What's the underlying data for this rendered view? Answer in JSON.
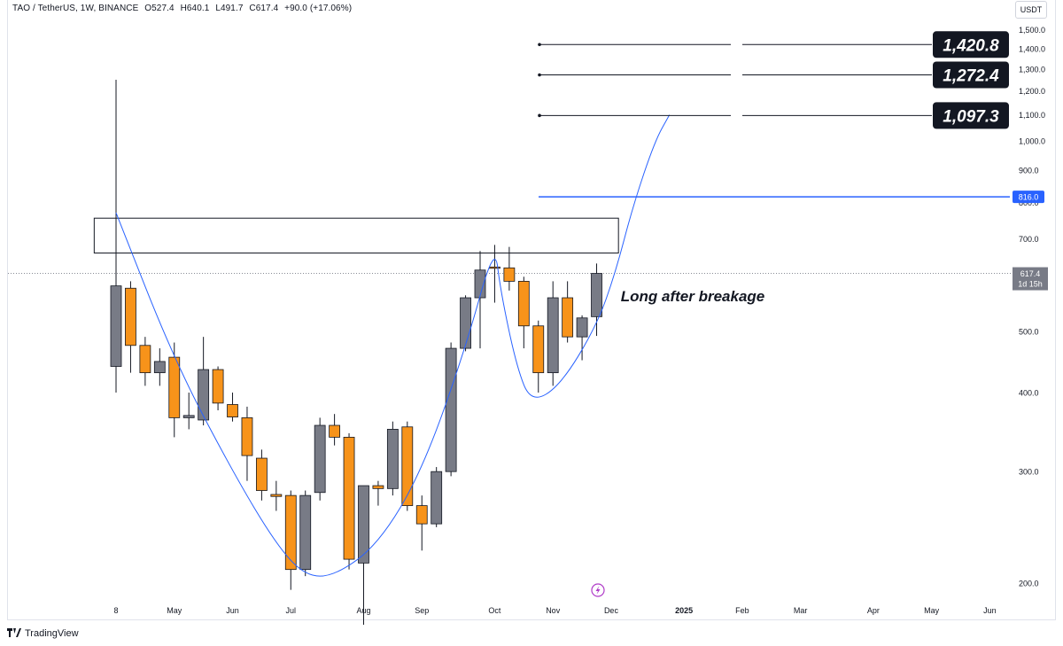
{
  "header": {
    "symbol": "TAO / TetherUS, 1W, BINANCE",
    "open": "O527.4",
    "high": "H640.1",
    "low": "L491.7",
    "close": "C617.4",
    "change": "+90.0 (+17.06%)",
    "currency": "USDT"
  },
  "footer": {
    "brand": "TradingView"
  },
  "annotation_text": "Long after breakage",
  "colors": {
    "up": "#787b86",
    "down": "#f7931a",
    "accent": "#2962ff",
    "target_bg": "#131722"
  },
  "chart_data": {
    "type": "candlestick",
    "y_scale": "log",
    "ylim": [
      180,
      1550
    ],
    "y_ticks": [
      {
        "value": 1500,
        "label": "1,500.0"
      },
      {
        "value": 1400,
        "label": "1,400.0"
      },
      {
        "value": 1300,
        "label": "1,300.0"
      },
      {
        "value": 1200,
        "label": "1,200.0"
      },
      {
        "value": 1100,
        "label": "1,100.0"
      },
      {
        "value": 1000,
        "label": "1,000.0"
      },
      {
        "value": 900,
        "label": "900.0"
      },
      {
        "value": 800,
        "label": "800.0"
      },
      {
        "value": 700,
        "label": "700.0"
      },
      {
        "value": 500,
        "label": "500.0"
      },
      {
        "value": 400,
        "label": "400.0"
      },
      {
        "value": 300,
        "label": "300.0"
      },
      {
        "value": 200,
        "label": "200.0"
      }
    ],
    "x_ticks": [
      {
        "index": 0,
        "label": "8"
      },
      {
        "index": 4,
        "label": "May"
      },
      {
        "index": 8,
        "label": "Jun"
      },
      {
        "index": 12,
        "label": "Jul"
      },
      {
        "index": 17,
        "label": "Aug"
      },
      {
        "index": 21,
        "label": "Sep"
      },
      {
        "index": 26,
        "label": "Oct"
      },
      {
        "index": 30,
        "label": "Nov"
      },
      {
        "index": 34,
        "label": "Dec"
      },
      {
        "index": 39,
        "label": "2025",
        "bold": true
      },
      {
        "index": 43,
        "label": "Feb"
      },
      {
        "index": 47,
        "label": "Mar"
      },
      {
        "index": 52,
        "label": "Apr"
      },
      {
        "index": 56,
        "label": "May"
      },
      {
        "index": 60,
        "label": "Jun"
      }
    ],
    "candles": [
      {
        "o": 440,
        "h": 1250,
        "l": 400,
        "c": 590
      },
      {
        "o": 585,
        "h": 600,
        "l": 430,
        "c": 475
      },
      {
        "o": 475,
        "h": 490,
        "l": 410,
        "c": 430
      },
      {
        "o": 430,
        "h": 470,
        "l": 410,
        "c": 448
      },
      {
        "o": 455,
        "h": 480,
        "l": 340,
        "c": 365
      },
      {
        "o": 365,
        "h": 400,
        "l": 350,
        "c": 368
      },
      {
        "o": 362,
        "h": 490,
        "l": 355,
        "c": 435
      },
      {
        "o": 435,
        "h": 440,
        "l": 375,
        "c": 385
      },
      {
        "o": 383,
        "h": 400,
        "l": 360,
        "c": 366
      },
      {
        "o": 365,
        "h": 380,
        "l": 290,
        "c": 318
      },
      {
        "o": 315,
        "h": 325,
        "l": 270,
        "c": 280
      },
      {
        "o": 276,
        "h": 290,
        "l": 260,
        "c": 274
      },
      {
        "o": 275,
        "h": 280,
        "l": 195,
        "c": 210
      },
      {
        "o": 210,
        "h": 280,
        "l": 205,
        "c": 275
      },
      {
        "o": 278,
        "h": 365,
        "l": 270,
        "c": 355
      },
      {
        "o": 355,
        "h": 370,
        "l": 330,
        "c": 340
      },
      {
        "o": 340,
        "h": 345,
        "l": 210,
        "c": 218
      },
      {
        "o": 215,
        "h": 285,
        "l": 170,
        "c": 285
      },
      {
        "o": 285,
        "h": 290,
        "l": 265,
        "c": 282
      },
      {
        "o": 282,
        "h": 360,
        "l": 275,
        "c": 350
      },
      {
        "o": 353,
        "h": 360,
        "l": 260,
        "c": 265
      },
      {
        "o": 265,
        "h": 275,
        "l": 225,
        "c": 248
      },
      {
        "o": 248,
        "h": 305,
        "l": 245,
        "c": 300
      },
      {
        "o": 300,
        "h": 480,
        "l": 295,
        "c": 470
      },
      {
        "o": 470,
        "h": 570,
        "l": 465,
        "c": 565
      },
      {
        "o": 565,
        "h": 670,
        "l": 470,
        "c": 625
      },
      {
        "o": 632,
        "h": 685,
        "l": 555,
        "c": 630
      },
      {
        "o": 630,
        "h": 680,
        "l": 580,
        "c": 600
      },
      {
        "o": 600,
        "h": 610,
        "l": 470,
        "c": 510
      },
      {
        "o": 510,
        "h": 520,
        "l": 400,
        "c": 430
      },
      {
        "o": 430,
        "h": 600,
        "l": 410,
        "c": 565
      },
      {
        "o": 565,
        "h": 600,
        "l": 480,
        "c": 490
      },
      {
        "o": 490,
        "h": 530,
        "l": 450,
        "c": 525
      },
      {
        "o": 527.4,
        "h": 640.1,
        "l": 491.7,
        "c": 617.4
      }
    ],
    "resistance_zone": {
      "low": 665,
      "high": 755,
      "from_index": -1.5,
      "to_index": 34.5
    },
    "breakout_level": {
      "value": 816.0,
      "label": "816.0"
    },
    "current_price": {
      "value": 617.4,
      "label": "617.4",
      "countdown": "1d 15h"
    },
    "targets": [
      {
        "value": 1420.8,
        "label": "1,420.8"
      },
      {
        "value": 1272.4,
        "label": "1,272.4"
      },
      {
        "value": 1097.3,
        "label": "1,097.3"
      }
    ],
    "projection_curve": [
      {
        "i": 0,
        "v": 770
      },
      {
        "i": 4,
        "v": 450
      },
      {
        "i": 8,
        "v": 300
      },
      {
        "i": 11,
        "v": 230
      },
      {
        "i": 13,
        "v": 205
      },
      {
        "i": 15,
        "v": 205
      },
      {
        "i": 18,
        "v": 230
      },
      {
        "i": 21,
        "v": 300
      },
      {
        "i": 24,
        "v": 470
      },
      {
        "i": 26,
        "v": 690
      },
      {
        "i": 26.4,
        "v": 580
      },
      {
        "i": 27.5,
        "v": 440
      },
      {
        "i": 28.5,
        "v": 385
      },
      {
        "i": 30.5,
        "v": 410
      },
      {
        "i": 33,
        "v": 510
      },
      {
        "i": 34.3,
        "v": 620
      },
      {
        "i": 35.5,
        "v": 790
      },
      {
        "i": 37,
        "v": 1000
      },
      {
        "i": 38,
        "v": 1100
      }
    ]
  }
}
